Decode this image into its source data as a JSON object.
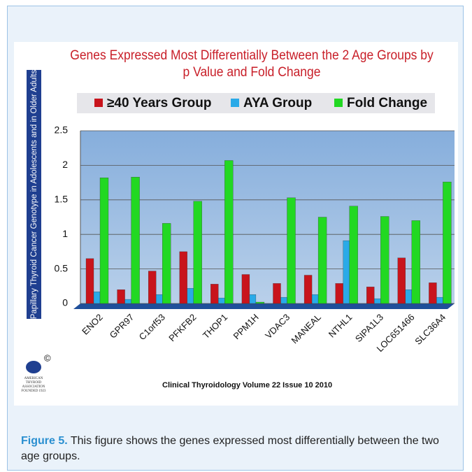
{
  "chart_data": {
    "type": "bar",
    "title": "Genes Expressed Most Differentially Between the 2 Age Groups by p Value and Fold Change",
    "y_label": "Papillary Thyroid Cancer Genotype in Adolescents and in  Older Adults",
    "categories": [
      "ENO2",
      "GPR97",
      "C1orf53",
      "PFKFB2",
      "THOP1",
      "PPM1H",
      "VDAC3",
      "MANEAL",
      "NTHL1",
      "SIPA1L3",
      "LOC651466",
      "SLC36A4"
    ],
    "series": [
      {
        "name": "≥40 Years Group",
        "color": "#c8141c",
        "values": [
          0.65,
          0.2,
          0.47,
          0.75,
          0.28,
          0.42,
          0.29,
          0.41,
          0.29,
          0.24,
          0.66,
          0.3
        ]
      },
      {
        "name": "AYA Group",
        "color": "#2aaae8",
        "values": [
          0.17,
          0.06,
          0.13,
          0.22,
          0.08,
          0.13,
          0.09,
          0.13,
          0.91,
          0.07,
          0.2,
          0.09
        ]
      },
      {
        "name": "Fold Change",
        "color": "#22d822",
        "values": [
          1.82,
          1.83,
          1.16,
          1.48,
          2.07,
          0.02,
          1.53,
          1.25,
          1.41,
          1.26,
          1.2,
          1.76
        ]
      }
    ],
    "ylim": [
      0,
      2.5
    ],
    "yticks": [
      0,
      0.5,
      1,
      1.5,
      2,
      2.5
    ],
    "grid": true,
    "source": "Clinical Thyroidology Volume 22 Issue 10 2010",
    "logo": {
      "mark": "©",
      "lines": [
        "AMERICAN",
        "THYROID",
        "ASSOCIATION",
        "FOUNDED 1923"
      ]
    }
  },
  "caption": {
    "label": "Figure 5.",
    "text": "This figure shows the genes expressed most differentially between the two age groups."
  }
}
